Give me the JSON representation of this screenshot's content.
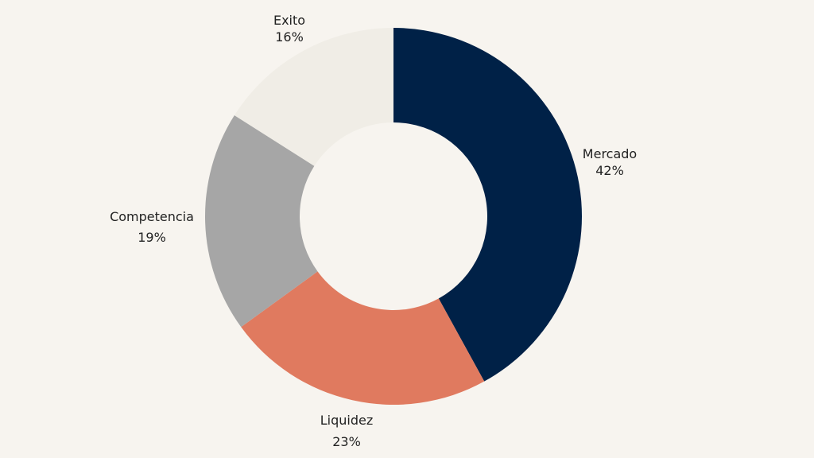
{
  "chart_data": {
    "type": "pie",
    "style": "donut",
    "title": "",
    "categories": [
      "Mercado",
      "Liquidez",
      "Competencia",
      "Exito"
    ],
    "values": [
      42,
      23,
      19,
      16
    ],
    "labels": [
      "42%",
      "23%",
      "19%",
      "16%"
    ],
    "colors": [
      "#002147",
      "#e07a5f",
      "#a6a6a6",
      "#f0ede6"
    ],
    "start_angle_deg": 0,
    "direction": "clockwise",
    "legend": "none",
    "label_position": "outside"
  },
  "background": "#f7f4ef",
  "labels": {
    "mercado": {
      "name": "Mercado",
      "pct": "42%"
    },
    "liquidez": {
      "name": "Liquidez",
      "pct": "23%"
    },
    "competencia": {
      "name": "Competencia",
      "pct": "19%"
    },
    "exito": {
      "name": "Exito",
      "pct": "16%"
    }
  }
}
